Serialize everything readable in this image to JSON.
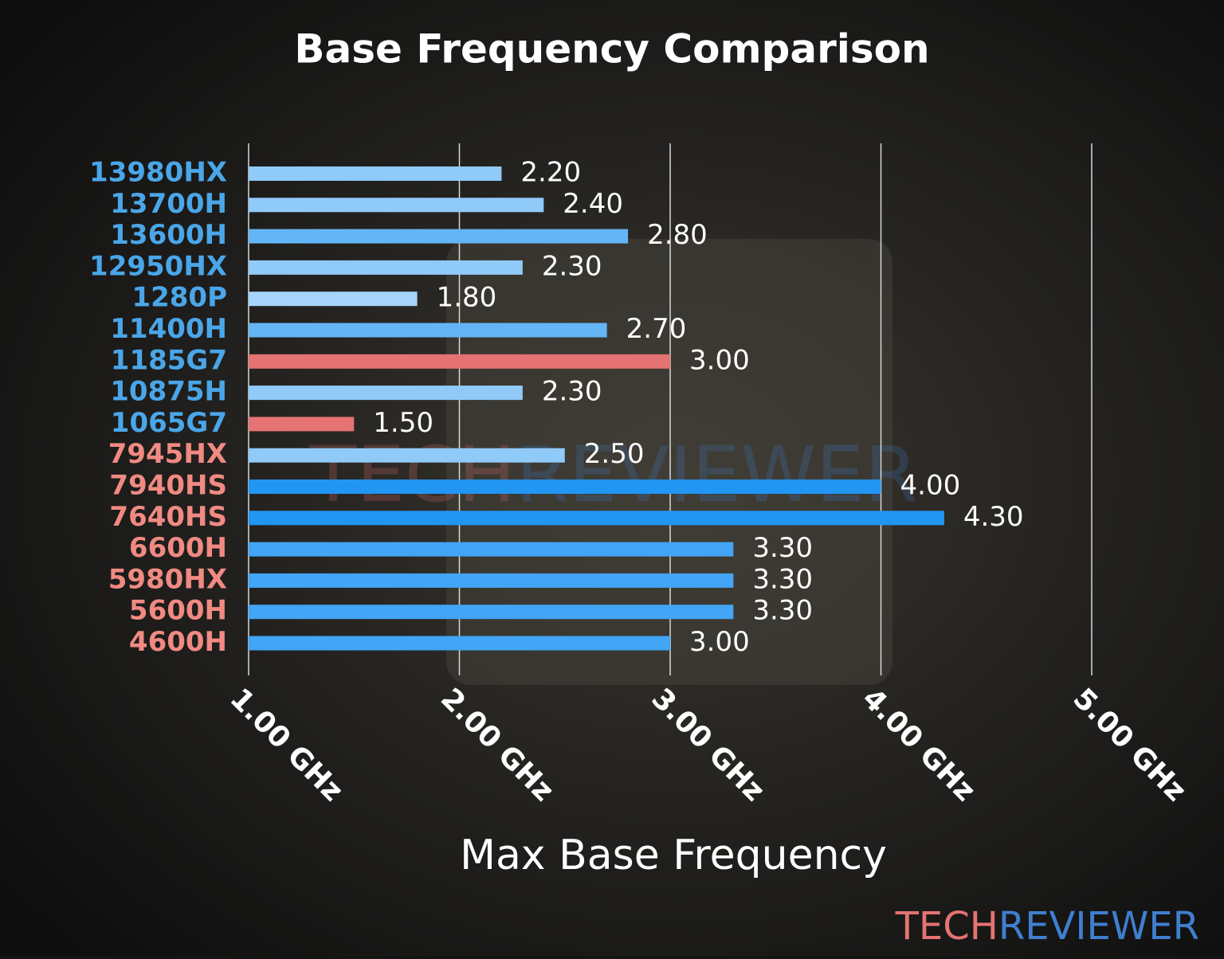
{
  "chart_data": {
    "type": "bar",
    "orientation": "horizontal",
    "title": "Base Frequency Comparison",
    "x_label": "Max Base Frequency",
    "categories": [
      "13980HX",
      "13700H",
      "13600H",
      "12950HX",
      "1280P",
      "11400H",
      "1185G7",
      "10875H",
      "1065G7",
      "7945HX",
      "7940HS",
      "7640HS",
      "6600H",
      "5980HX",
      "5600H",
      "4600H"
    ],
    "category_colors": [
      "#4aa6e8",
      "#4aa6e8",
      "#4aa6e8",
      "#4aa6e8",
      "#4aa6e8",
      "#4aa6e8",
      "#4aa6e8",
      "#4aa6e8",
      "#4aa6e8",
      "#f08a82",
      "#f08a82",
      "#f08a82",
      "#f08a82",
      "#f08a82",
      "#f08a82",
      "#f08a82"
    ],
    "values": [
      2.2,
      2.4,
      2.8,
      2.3,
      1.8,
      2.7,
      3.0,
      2.3,
      1.5,
      2.5,
      4.0,
      4.3,
      3.3,
      3.3,
      3.3,
      3.0
    ],
    "value_labels": [
      "2.20",
      "2.40",
      "2.80",
      "2.30",
      "1.80",
      "2.70",
      "3.00",
      "2.30",
      "1.50",
      "2.50",
      "4.00",
      "4.30",
      "3.30",
      "3.30",
      "3.30",
      "3.00"
    ],
    "colors": [
      "#90caf9",
      "#90caf9",
      "#64b5f6",
      "#90caf9",
      "#a6d4fa",
      "#64b5f6",
      "#e57373",
      "#90caf9",
      "#e57373",
      "#90caf9",
      "#2196f3",
      "#2196f3",
      "#42a5f5",
      "#42a5f5",
      "#42a5f5",
      "#42a5f5"
    ],
    "xlim": [
      1,
      5
    ],
    "xticks": [
      {
        "value": 1,
        "label": "1.00 GHz"
      },
      {
        "value": 2,
        "label": "2.00 GHz"
      },
      {
        "value": 3,
        "label": "3.00 GHz"
      },
      {
        "value": 4,
        "label": "4.00 GHz"
      },
      {
        "value": 5,
        "label": "5.00 GHz"
      }
    ],
    "grid": true,
    "logo": [
      "TECH",
      "REVIEWER"
    ],
    "logo_colors": [
      "#e57373",
      "#3f7fd0"
    ]
  }
}
